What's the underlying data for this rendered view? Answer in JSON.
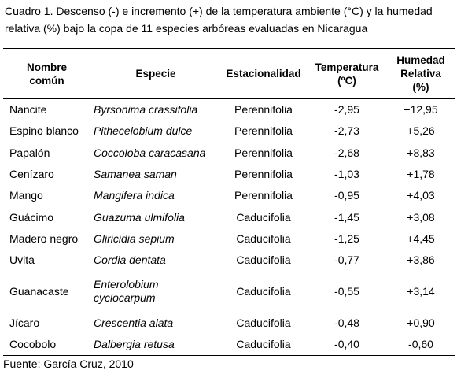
{
  "caption": "Cuadro 1. Descenso (-) e incremento (+) de la temperatura ambiente (°C) y la humedad relativa (%) bajo la copa de 11 especies arbóreas evaluadas en Nicaragua",
  "headers": {
    "common_name_1": "Nombre",
    "common_name_2": "común",
    "species": "Especie",
    "seasonality": "Estacionalidad",
    "temperature_1": "Temperatura",
    "temperature_2": "(ºC)",
    "humidity_1": "Humedad",
    "humidity_2": "Relativa",
    "humidity_3": "(%)"
  },
  "rows": [
    {
      "common": "Nancite",
      "species": "Byrsonima crassifolia",
      "species_2": "",
      "season": "Perennifolia",
      "temp": "-2,95",
      "humidity": "+12,95"
    },
    {
      "common": "Espino blanco",
      "species": "Pithecelobium dulce",
      "species_2": "",
      "season": "Perennifolia",
      "temp": "-2,73",
      "humidity": "+5,26"
    },
    {
      "common": "Papalón",
      "species": "Coccoloba caracasana",
      "species_2": "",
      "season": "Perennifolia",
      "temp": "-2,68",
      "humidity": "+8,83"
    },
    {
      "common": "Cenízaro",
      "species": "Samanea saman",
      "species_2": "",
      "season": "Perennifolia",
      "temp": "-1,03",
      "humidity": "+1,78"
    },
    {
      "common": "Mango",
      "species": "Mangifera indica",
      "species_2": "",
      "season": "Perennifolia",
      "temp": "-0,95",
      "humidity": "+4,03"
    },
    {
      "common": "Guácimo",
      "species": "Guazuma ulmifolia",
      "species_2": "",
      "season": "Caducifolia",
      "temp": "-1,45",
      "humidity": "+3,08"
    },
    {
      "common": "Madero negro",
      "species": "Gliricidia sepium",
      "species_2": "",
      "season": "Caducifolia",
      "temp": "-1,25",
      "humidity": "+4,45"
    },
    {
      "common": "Uvita",
      "species": "Cordia dentata",
      "species_2": "",
      "season": "Caducifolia",
      "temp": "-0,77",
      "humidity": "+3,86"
    },
    {
      "common": "Guanacaste",
      "species": "Enterolobium",
      "species_2": "cyclocarpum",
      "season": "Caducifolia",
      "temp": "-0,55",
      "humidity": "+3,14"
    },
    {
      "common": "Jícaro",
      "species": "Crescentia alata",
      "species_2": "",
      "season": "Caducifolia",
      "temp": "-0,48",
      "humidity": "+0,90"
    },
    {
      "common": "Cocobolo",
      "species": "Dalbergia retusa",
      "species_2": "",
      "season": "Caducifolia",
      "temp": "-0,40",
      "humidity": "-0,60"
    }
  ],
  "footer": "Fuente: García Cruz, 2010"
}
